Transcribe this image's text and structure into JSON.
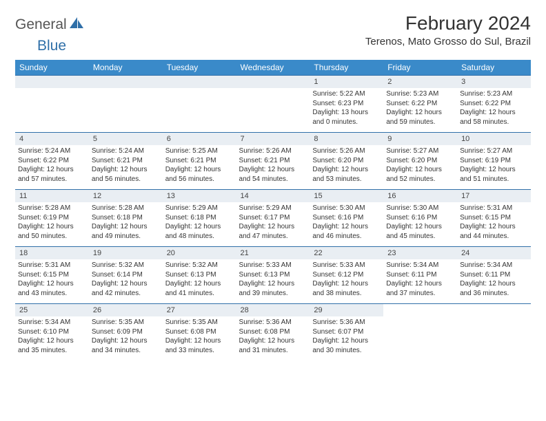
{
  "brand": {
    "text1": "General",
    "text2": "Blue",
    "color_blue": "#2f6fa8",
    "color_gray": "#555555"
  },
  "title": "February 2024",
  "location": "Terenos, Mato Grosso do Sul, Brazil",
  "colors": {
    "header_bg": "#3a8ac9",
    "header_text": "#ffffff",
    "daynum_bg": "#e9eef3",
    "border": "#2f6fa8",
    "body_text": "#333333"
  },
  "dow": [
    "Sunday",
    "Monday",
    "Tuesday",
    "Wednesday",
    "Thursday",
    "Friday",
    "Saturday"
  ],
  "weeks": [
    [
      null,
      null,
      null,
      null,
      {
        "d": "1",
        "sr": "5:22 AM",
        "ss": "6:23 PM",
        "dl1": "13 hours",
        "dl2": "and 0 minutes."
      },
      {
        "d": "2",
        "sr": "5:23 AM",
        "ss": "6:22 PM",
        "dl1": "12 hours",
        "dl2": "and 59 minutes."
      },
      {
        "d": "3",
        "sr": "5:23 AM",
        "ss": "6:22 PM",
        "dl1": "12 hours",
        "dl2": "and 58 minutes."
      }
    ],
    [
      {
        "d": "4",
        "sr": "5:24 AM",
        "ss": "6:22 PM",
        "dl1": "12 hours",
        "dl2": "and 57 minutes."
      },
      {
        "d": "5",
        "sr": "5:24 AM",
        "ss": "6:21 PM",
        "dl1": "12 hours",
        "dl2": "and 56 minutes."
      },
      {
        "d": "6",
        "sr": "5:25 AM",
        "ss": "6:21 PM",
        "dl1": "12 hours",
        "dl2": "and 56 minutes."
      },
      {
        "d": "7",
        "sr": "5:26 AM",
        "ss": "6:21 PM",
        "dl1": "12 hours",
        "dl2": "and 54 minutes."
      },
      {
        "d": "8",
        "sr": "5:26 AM",
        "ss": "6:20 PM",
        "dl1": "12 hours",
        "dl2": "and 53 minutes."
      },
      {
        "d": "9",
        "sr": "5:27 AM",
        "ss": "6:20 PM",
        "dl1": "12 hours",
        "dl2": "and 52 minutes."
      },
      {
        "d": "10",
        "sr": "5:27 AM",
        "ss": "6:19 PM",
        "dl1": "12 hours",
        "dl2": "and 51 minutes."
      }
    ],
    [
      {
        "d": "11",
        "sr": "5:28 AM",
        "ss": "6:19 PM",
        "dl1": "12 hours",
        "dl2": "and 50 minutes."
      },
      {
        "d": "12",
        "sr": "5:28 AM",
        "ss": "6:18 PM",
        "dl1": "12 hours",
        "dl2": "and 49 minutes."
      },
      {
        "d": "13",
        "sr": "5:29 AM",
        "ss": "6:18 PM",
        "dl1": "12 hours",
        "dl2": "and 48 minutes."
      },
      {
        "d": "14",
        "sr": "5:29 AM",
        "ss": "6:17 PM",
        "dl1": "12 hours",
        "dl2": "and 47 minutes."
      },
      {
        "d": "15",
        "sr": "5:30 AM",
        "ss": "6:16 PM",
        "dl1": "12 hours",
        "dl2": "and 46 minutes."
      },
      {
        "d": "16",
        "sr": "5:30 AM",
        "ss": "6:16 PM",
        "dl1": "12 hours",
        "dl2": "and 45 minutes."
      },
      {
        "d": "17",
        "sr": "5:31 AM",
        "ss": "6:15 PM",
        "dl1": "12 hours",
        "dl2": "and 44 minutes."
      }
    ],
    [
      {
        "d": "18",
        "sr": "5:31 AM",
        "ss": "6:15 PM",
        "dl1": "12 hours",
        "dl2": "and 43 minutes."
      },
      {
        "d": "19",
        "sr": "5:32 AM",
        "ss": "6:14 PM",
        "dl1": "12 hours",
        "dl2": "and 42 minutes."
      },
      {
        "d": "20",
        "sr": "5:32 AM",
        "ss": "6:13 PM",
        "dl1": "12 hours",
        "dl2": "and 41 minutes."
      },
      {
        "d": "21",
        "sr": "5:33 AM",
        "ss": "6:13 PM",
        "dl1": "12 hours",
        "dl2": "and 39 minutes."
      },
      {
        "d": "22",
        "sr": "5:33 AM",
        "ss": "6:12 PM",
        "dl1": "12 hours",
        "dl2": "and 38 minutes."
      },
      {
        "d": "23",
        "sr": "5:34 AM",
        "ss": "6:11 PM",
        "dl1": "12 hours",
        "dl2": "and 37 minutes."
      },
      {
        "d": "24",
        "sr": "5:34 AM",
        "ss": "6:11 PM",
        "dl1": "12 hours",
        "dl2": "and 36 minutes."
      }
    ],
    [
      {
        "d": "25",
        "sr": "5:34 AM",
        "ss": "6:10 PM",
        "dl1": "12 hours",
        "dl2": "and 35 minutes."
      },
      {
        "d": "26",
        "sr": "5:35 AM",
        "ss": "6:09 PM",
        "dl1": "12 hours",
        "dl2": "and 34 minutes."
      },
      {
        "d": "27",
        "sr": "5:35 AM",
        "ss": "6:08 PM",
        "dl1": "12 hours",
        "dl2": "and 33 minutes."
      },
      {
        "d": "28",
        "sr": "5:36 AM",
        "ss": "6:08 PM",
        "dl1": "12 hours",
        "dl2": "and 31 minutes."
      },
      {
        "d": "29",
        "sr": "5:36 AM",
        "ss": "6:07 PM",
        "dl1": "12 hours",
        "dl2": "and 30 minutes."
      },
      null,
      null
    ]
  ],
  "labels": {
    "sunrise": "Sunrise:",
    "sunset": "Sunset:",
    "daylight": "Daylight:"
  }
}
